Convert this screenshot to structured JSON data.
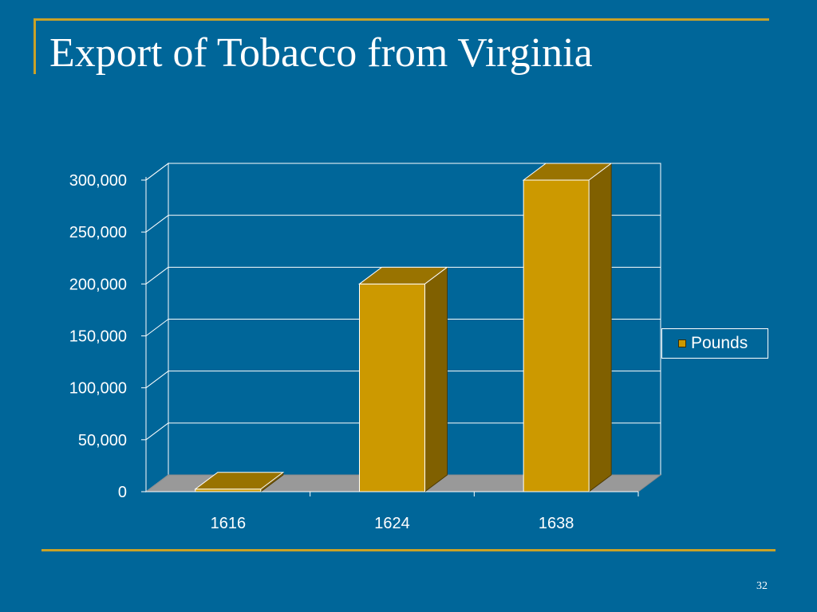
{
  "slide": {
    "title": "Export of Tobacco from Virginia",
    "page_number": "32"
  },
  "colors": {
    "background": "#006699",
    "accent_rule": "#C9A227",
    "bar_front": "#CC9900",
    "bar_top": "#997300",
    "bar_side": "#806000",
    "floor": "#999999",
    "text": "#FFFFFF"
  },
  "chart_data": {
    "type": "bar",
    "style": "3d-column",
    "categories": [
      "1616",
      "1624",
      "1638"
    ],
    "series": [
      {
        "name": "Pounds",
        "values": [
          2500,
          200000,
          300000
        ]
      }
    ],
    "ylim": [
      0,
      300000
    ],
    "yticks": [
      0,
      50000,
      100000,
      150000,
      200000,
      250000,
      300000
    ],
    "ytick_labels": [
      "0",
      "50,000",
      "100,000",
      "150,000",
      "200,000",
      "250,000",
      "300,000"
    ],
    "grid": true,
    "legend_position": "right"
  }
}
